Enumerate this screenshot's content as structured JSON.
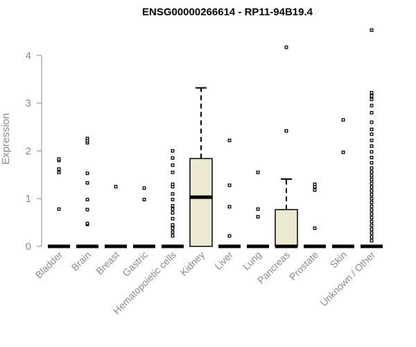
{
  "chart_data": {
    "type": "boxplot",
    "title": "ENSG00000266614 - RP11-94B19.4",
    "ylabel": "Expression",
    "xlabel": "",
    "ylim": [
      0,
      4.55
    ],
    "yticks": [
      0,
      1,
      2,
      3,
      4
    ],
    "colors": {
      "box_fill": "#ede8d0",
      "stroke": "#000000",
      "axis": "#8a8a8a",
      "tick_label": "#8a8a8a"
    },
    "categories": [
      "Bladder",
      "Brain",
      "Breast",
      "Gastric",
      "Hematopoietic cells",
      "Kidney",
      "Liver",
      "Lung",
      "Pancreas",
      "Prostate",
      "Skin",
      "Unknown / Other"
    ],
    "boxes": [
      {
        "q1": 0,
        "median": 0,
        "q3": 0,
        "whisker_low": 0,
        "whisker_high": 0,
        "outliers": [
          0.78,
          1.55,
          1.6,
          1.62,
          1.8,
          1.83
        ]
      },
      {
        "q1": 0,
        "median": 0,
        "q3": 0,
        "whisker_low": 0,
        "whisker_high": 0,
        "outliers": [
          0.46,
          0.48,
          0.77,
          0.98,
          1.33,
          1.53,
          2.17,
          2.21,
          2.26
        ]
      },
      {
        "q1": 0,
        "median": 0,
        "q3": 0,
        "whisker_low": 0,
        "whisker_high": 0,
        "outliers": [
          1.25
        ]
      },
      {
        "q1": 0,
        "median": 0,
        "q3": 0,
        "whisker_low": 0,
        "whisker_high": 0,
        "outliers": [
          0.98,
          1.22
        ]
      },
      {
        "q1": 0,
        "median": 0,
        "q3": 0,
        "whisker_low": 0,
        "whisker_high": 0,
        "outliers": [
          0.22,
          0.3,
          0.38,
          0.45,
          0.58,
          0.7,
          0.78,
          0.85,
          0.98,
          1.1,
          1.25,
          1.3,
          1.55,
          1.7,
          1.85,
          2.0
        ]
      },
      {
        "q1": 0,
        "median": 1.03,
        "q3": 1.84,
        "whisker_low": 0,
        "whisker_high": 3.32,
        "outliers": []
      },
      {
        "q1": 0,
        "median": 0,
        "q3": 0,
        "whisker_low": 0,
        "whisker_high": 0,
        "outliers": [
          0.22,
          0.83,
          1.28,
          2.22
        ]
      },
      {
        "q1": 0,
        "median": 0,
        "q3": 0,
        "whisker_low": 0,
        "whisker_high": 0,
        "outliers": [
          0.62,
          0.78,
          1.55
        ]
      },
      {
        "q1": 0,
        "median": 0,
        "q3": 0.77,
        "whisker_low": 0,
        "whisker_high": 1.41,
        "outliers": [
          2.42,
          4.17
        ]
      },
      {
        "q1": 0,
        "median": 0,
        "q3": 0,
        "whisker_low": 0,
        "whisker_high": 0,
        "outliers": [
          0.38,
          1.18,
          1.25,
          1.3
        ]
      },
      {
        "q1": 0,
        "median": 0,
        "q3": 0,
        "whisker_low": 0,
        "whisker_high": 0,
        "outliers": [
          1.97,
          2.65
        ]
      },
      {
        "q1": 0,
        "median": 0,
        "q3": 0,
        "whisker_low": 0,
        "whisker_high": 0,
        "outliers": [
          0.12,
          0.2,
          0.28,
          0.36,
          0.44,
          0.52,
          0.6,
          0.68,
          0.76,
          0.84,
          0.92,
          1.0,
          1.08,
          1.16,
          1.24,
          1.32,
          1.4,
          1.48,
          1.56,
          1.64,
          1.75,
          1.86,
          1.98,
          2.1,
          2.22,
          2.35,
          2.45,
          2.6,
          2.8,
          2.95,
          3.08,
          3.15,
          3.22,
          4.53
        ]
      }
    ]
  }
}
